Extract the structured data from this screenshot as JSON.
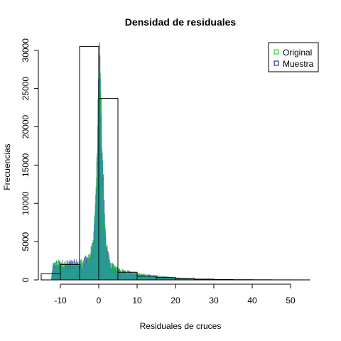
{
  "chart_data": {
    "type": "bar",
    "title": "Densidad de residuales",
    "xlabel": "Residuales de cruces",
    "ylabel": "Frecuencias",
    "xlim": [
      -15,
      55
    ],
    "ylim": [
      0,
      31000
    ],
    "x_ticks": [
      -10,
      0,
      10,
      20,
      30,
      40,
      50
    ],
    "y_ticks": [
      0,
      5000,
      10000,
      15000,
      20000,
      25000,
      30000
    ],
    "grid": false,
    "legend": {
      "placement": "top-right",
      "entries": [
        {
          "name": "Original",
          "color": "#00cc00"
        },
        {
          "name": "Muestra",
          "color": "#000080"
        }
      ]
    },
    "colors": {
      "original": "#00cc00",
      "muestra": "#4444cc",
      "overlap": "#2a9a90",
      "outline": "#000000"
    },
    "outline_histogram": {
      "bins": [
        {
          "x0": -15,
          "x1": -10,
          "value": 800
        },
        {
          "x0": -10,
          "x1": -5,
          "value": 2000
        },
        {
          "x0": -5,
          "x1": 0,
          "value": 30500
        },
        {
          "x0": 0,
          "x1": 5,
          "value": 23700
        },
        {
          "x0": 5,
          "x1": 10,
          "value": 1000
        },
        {
          "x0": 10,
          "x1": 15,
          "value": 500
        },
        {
          "x0": 15,
          "x1": 20,
          "value": 300
        },
        {
          "x0": 20,
          "x1": 25,
          "value": 200
        },
        {
          "x0": 25,
          "x1": 30,
          "value": 100
        },
        {
          "x0": 30,
          "x1": 35,
          "value": 50
        },
        {
          "x0": 35,
          "x1": 40,
          "value": 30
        },
        {
          "x0": 40,
          "x1": 45,
          "value": 20
        },
        {
          "x0": 45,
          "x1": 50,
          "value": 10
        },
        {
          "x0": 50,
          "x1": 55,
          "value": 5
        }
      ]
    },
    "fine_distribution": {
      "bin_width": 0.1,
      "points": [
        [
          -12.5,
          0
        ],
        [
          -12,
          1800
        ],
        [
          -11,
          2000
        ],
        [
          -10,
          2000
        ],
        [
          -9,
          1950
        ],
        [
          -8,
          1950
        ],
        [
          -7,
          2000
        ],
        [
          -6,
          2050
        ],
        [
          -5,
          2100
        ],
        [
          -4,
          2200
        ],
        [
          -3,
          2600
        ],
        [
          -2,
          3500
        ],
        [
          -1.5,
          5000
        ],
        [
          -1,
          9000
        ],
        [
          -0.5,
          16000
        ],
        [
          -0.2,
          24000
        ],
        [
          0,
          31000
        ],
        [
          0.2,
          27000
        ],
        [
          0.5,
          22000
        ],
        [
          1,
          14000
        ],
        [
          1.5,
          7000
        ],
        [
          2,
          3500
        ],
        [
          3,
          1800
        ],
        [
          5,
          1200
        ],
        [
          7,
          1000
        ],
        [
          10,
          700
        ],
        [
          15,
          450
        ],
        [
          20,
          250
        ],
        [
          25,
          120
        ],
        [
          30,
          40
        ],
        [
          35,
          15
        ],
        [
          40,
          5
        ],
        [
          50,
          0
        ]
      ]
    }
  }
}
